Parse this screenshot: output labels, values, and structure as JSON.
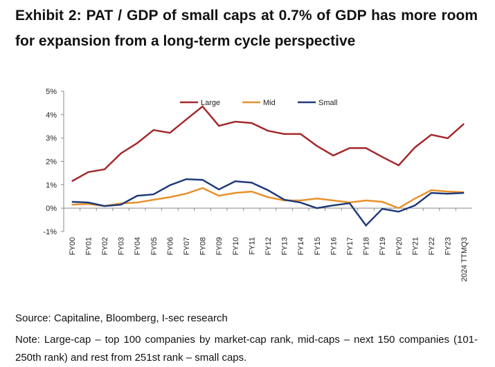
{
  "chart_data": {
    "type": "line",
    "title": "Exhibit 2: PAT / GDP of small caps at 0.7% of GDP has more room for expansion from a long-term cycle perspective",
    "categories": [
      "FY00",
      "FY01",
      "FY02",
      "FY03",
      "FY04",
      "FY05",
      "FY06",
      "FY07",
      "FY08",
      "FY09",
      "FY10",
      "FY11",
      "FY12",
      "FY13",
      "FY14",
      "FY15",
      "FY16",
      "FY17",
      "FY18",
      "FY19",
      "FY20",
      "FY21",
      "FY22",
      "FY23",
      "2024 TTMQ3"
    ],
    "series": [
      {
        "name": "Large",
        "color": "#a3282b",
        "values": [
          1.15,
          1.54,
          1.66,
          2.34,
          2.78,
          3.34,
          3.22,
          3.79,
          4.35,
          3.52,
          3.7,
          3.64,
          3.31,
          3.17,
          3.17,
          2.66,
          2.25,
          2.57,
          2.57,
          2.19,
          1.83,
          2.6,
          3.14,
          2.99,
          3.61
        ]
      },
      {
        "name": "Mid",
        "color": "#e8902a",
        "values": [
          0.15,
          0.18,
          0.09,
          0.2,
          0.24,
          0.36,
          0.47,
          0.62,
          0.86,
          0.53,
          0.65,
          0.71,
          0.47,
          0.33,
          0.33,
          0.41,
          0.33,
          0.24,
          0.33,
          0.27,
          0.0,
          0.41,
          0.77,
          0.71,
          0.68
        ]
      },
      {
        "name": "Small",
        "color": "#1f3a7a",
        "values": [
          0.27,
          0.24,
          0.09,
          0.15,
          0.53,
          0.59,
          0.98,
          1.24,
          1.21,
          0.8,
          1.15,
          1.09,
          0.77,
          0.36,
          0.24,
          0.0,
          0.12,
          0.21,
          -0.74,
          -0.03,
          -0.15,
          0.12,
          0.65,
          0.62,
          0.65
        ]
      }
    ],
    "ylim": [
      -1,
      5
    ],
    "yticks": [
      {
        "value": -1,
        "label": "-1%"
      },
      {
        "value": 0,
        "label": "0%"
      },
      {
        "value": 1,
        "label": "1%"
      },
      {
        "value": 2,
        "label": "2%"
      },
      {
        "value": 3,
        "label": "3%"
      },
      {
        "value": 4,
        "label": "4%"
      },
      {
        "value": 5,
        "label": "5%"
      }
    ],
    "source": "Source: Capitaline, Bloomberg, I-sec research",
    "note": "Note: Large-cap – top 100 companies by market-cap rank, mid-caps – next 150 companies (101-250th rank) and rest from 251st rank – small caps."
  }
}
